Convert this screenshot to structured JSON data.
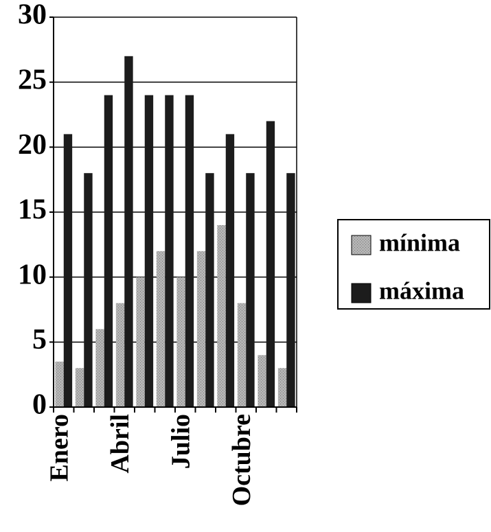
{
  "chart_data": {
    "type": "bar",
    "categories": [
      "Enero",
      null,
      null,
      "Abril",
      null,
      null,
      "Julio",
      null,
      null,
      "Octubre",
      null,
      null
    ],
    "series": [
      {
        "name": "mínima",
        "color": "#a8a8a8",
        "values": [
          3.5,
          3,
          6,
          8,
          10,
          12,
          10,
          12,
          14,
          8,
          4,
          3
        ]
      },
      {
        "name": "máxima",
        "color": "#1c1c1c",
        "values": [
          21,
          18,
          24,
          27,
          24,
          24,
          24,
          18,
          21,
          18,
          22,
          18
        ]
      }
    ],
    "ylim": [
      0,
      30
    ],
    "yticks": [
      0,
      5,
      10,
      15,
      20,
      25,
      30
    ],
    "grid": true,
    "legend": "right"
  }
}
